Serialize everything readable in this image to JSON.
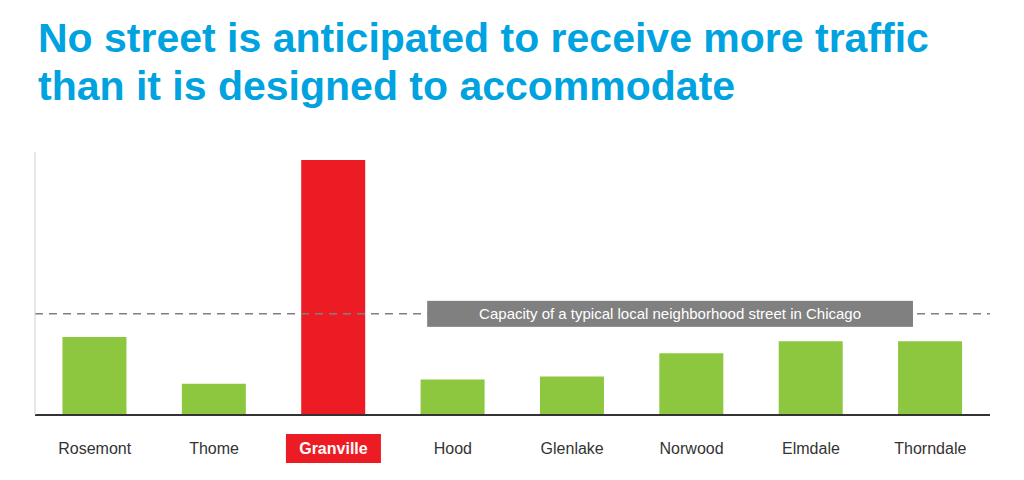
{
  "chart_data": {
    "type": "bar",
    "title": "No street is anticipated to receive more traffic than it is designed to accommodate",
    "categories": [
      "Rosemont",
      "Thome",
      "Granville",
      "Hood",
      "Glenlake",
      "Norwood",
      "Elmdale",
      "Thorndale"
    ],
    "values": [
      77,
      31,
      252,
      35,
      38,
      61,
      73,
      73
    ],
    "colors": [
      "#8dc63f",
      "#8dc63f",
      "#ed1c24",
      "#8dc63f",
      "#8dc63f",
      "#8dc63f",
      "#8dc63f",
      "#8dc63f"
    ],
    "ylim": [
      0,
      260
    ],
    "tick_labels": "x",
    "grid": false,
    "annotations": [
      {
        "label": "Capacity of a typical local neighborhood street in Chicago",
        "y": 100
      }
    ]
  }
}
